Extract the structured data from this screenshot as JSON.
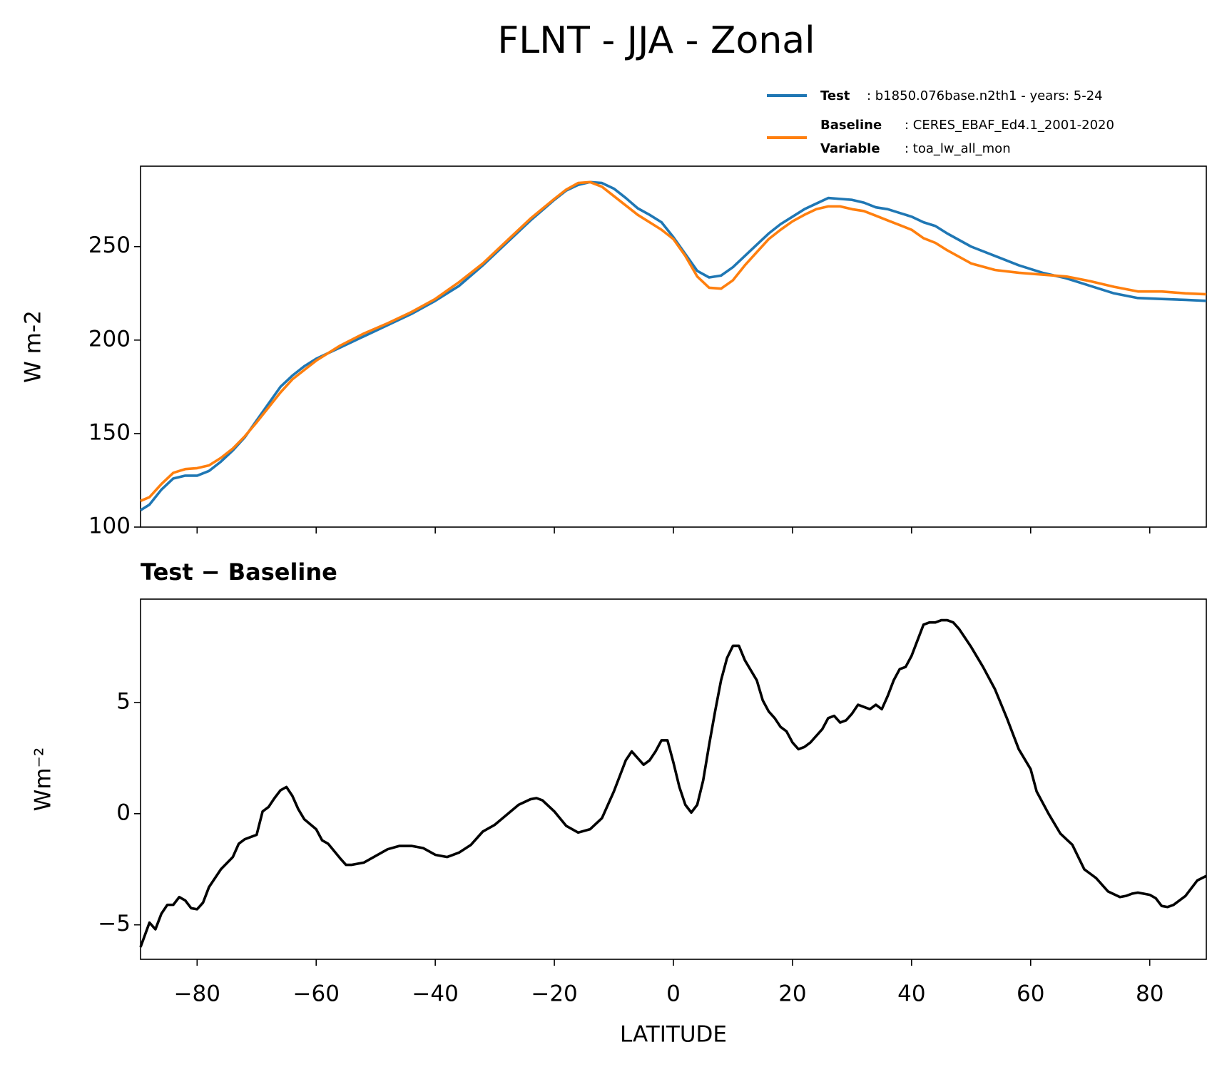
{
  "chart_data": [
    {
      "type": "line",
      "title": "FLNT - JJA - Zonal",
      "ylabel": "W m-2",
      "x": [
        -89.5,
        -88,
        -86,
        -84,
        -82,
        -80,
        -78,
        -76,
        -74,
        -72,
        -70,
        -68,
        -66,
        -64,
        -62,
        -60,
        -56,
        -52,
        -48,
        -44,
        -40,
        -36,
        -32,
        -28,
        -24,
        -20,
        -18,
        -16,
        -14,
        -12,
        -10,
        -8,
        -6,
        -4,
        -2,
        0,
        2,
        4,
        6,
        8,
        10,
        12,
        14,
        16,
        18,
        20,
        22,
        24,
        26,
        28,
        30,
        32,
        34,
        36,
        38,
        40,
        42,
        44,
        46,
        50,
        54,
        58,
        62,
        66,
        70,
        74,
        78,
        82,
        86,
        89.5
      ],
      "series": [
        {
          "name": "Test",
          "label": ": b1850.076base.n2th1 - years: 5-24",
          "color": "#1f77b4",
          "values": [
            109,
            112,
            120,
            126,
            127.5,
            127.5,
            130,
            135,
            141,
            148,
            157,
            166,
            175,
            181,
            186,
            190,
            196,
            202,
            208,
            214,
            221,
            229,
            240,
            252,
            264,
            275,
            280,
            283,
            284.5,
            284,
            281,
            276,
            270.5,
            267,
            263,
            255,
            246,
            237,
            233.5,
            234.5,
            239,
            245,
            251,
            257,
            262,
            266,
            270,
            273,
            276,
            275.5,
            275,
            273.5,
            271,
            270,
            268,
            266,
            263,
            261,
            257,
            250,
            245,
            240,
            236,
            233,
            229,
            225,
            222.5,
            222,
            221.5,
            221
          ]
        },
        {
          "name": "Baseline",
          "label": ": CERES_EBAF_Ed4.1_2001-2020",
          "extra_name": "Variable",
          "extra_label": ": toa_lw_all_mon",
          "color": "#ff7f0e",
          "values": [
            114,
            116,
            123,
            129,
            131,
            131.5,
            133,
            137,
            142,
            148.5,
            156,
            164,
            172,
            179,
            184,
            189,
            197,
            203.5,
            209,
            215,
            222,
            231,
            241,
            253,
            265,
            275.5,
            280.5,
            284,
            284.5,
            282,
            277,
            272,
            267,
            263,
            259,
            254,
            245,
            234,
            228,
            227.5,
            232,
            240,
            247,
            254,
            259,
            263.5,
            267,
            270,
            271.5,
            271.5,
            270,
            269,
            266.5,
            264,
            261.5,
            259,
            254.5,
            252,
            248,
            241,
            237.5,
            236,
            235,
            234,
            231.5,
            228.5,
            226,
            226,
            225,
            224.5
          ]
        }
      ],
      "xlim": [
        -89.5,
        89.5
      ],
      "xticks": [
        -80,
        -60,
        -40,
        -20,
        0,
        20,
        40,
        60,
        80
      ],
      "ylim": [
        100,
        293
      ],
      "yticks": [
        100,
        150,
        200,
        250
      ]
    },
    {
      "type": "line",
      "title": "Test − Baseline",
      "xlabel": "LATITUDE",
      "ylabel": "Wm⁻²",
      "color": "#000000",
      "x": [
        -89.5,
        -88,
        -87,
        -86,
        -85,
        -84,
        -83,
        -82,
        -81,
        -80,
        -79,
        -78,
        -76,
        -74,
        -73,
        -72,
        -70,
        -69,
        -68,
        -67,
        -66,
        -65,
        -64,
        -63,
        -62,
        -60,
        -59,
        -58,
        -56,
        -55,
        -54,
        -52,
        -50,
        -48,
        -46,
        -44,
        -42,
        -40,
        -38,
        -36,
        -34,
        -32,
        -30,
        -28,
        -26,
        -24,
        -23,
        -22,
        -20,
        -18,
        -16,
        -14,
        -12,
        -10,
        -8,
        -7,
        -6,
        -5,
        -4,
        -3,
        -2,
        -1,
        0,
        1,
        2,
        3,
        4,
        5,
        6,
        7,
        8,
        9,
        10,
        11,
        12,
        14,
        15,
        16,
        17,
        18,
        19,
        20,
        21,
        22,
        23,
        24,
        25,
        26,
        27,
        28,
        29,
        30,
        31,
        33,
        34,
        35,
        36,
        37,
        38,
        39,
        40,
        41,
        42,
        43,
        44,
        45,
        46,
        47,
        48,
        50,
        52,
        54,
        56,
        58,
        60,
        61,
        63,
        65,
        67,
        69,
        71,
        73,
        75,
        76,
        77,
        78,
        79,
        80,
        81,
        82,
        83,
        84,
        86,
        88,
        89.5
      ],
      "values": [
        -6,
        -4.9,
        -5.2,
        -4.5,
        -4.1,
        -4.1,
        -3.75,
        -3.9,
        -4.25,
        -4.3,
        -4,
        -3.3,
        -2.5,
        -1.95,
        -1.35,
        -1.15,
        -0.95,
        0.1,
        0.3,
        0.7,
        1.05,
        1.2,
        0.8,
        0.2,
        -0.25,
        -0.7,
        -1.2,
        -1.35,
        -2,
        -2.3,
        -2.3,
        -2.2,
        -1.9,
        -1.6,
        -1.45,
        -1.45,
        -1.55,
        -1.85,
        -1.95,
        -1.75,
        -1.4,
        -0.8,
        -0.5,
        -0.05,
        0.4,
        0.65,
        0.7,
        0.6,
        0.1,
        -0.55,
        -0.85,
        -0.7,
        -0.2,
        1,
        2.4,
        2.8,
        2.5,
        2.2,
        2.4,
        2.8,
        3.3,
        3.3,
        2.3,
        1.2,
        0.4,
        0.05,
        0.4,
        1.5,
        3.1,
        4.6,
        6,
        7,
        7.55,
        7.55,
        6.9,
        6,
        5.1,
        4.6,
        4.3,
        3.9,
        3.7,
        3.2,
        2.9,
        3,
        3.2,
        3.5,
        3.8,
        4.3,
        4.4,
        4.1,
        4.2,
        4.5,
        4.9,
        4.7,
        4.9,
        4.7,
        5.3,
        6,
        6.5,
        6.6,
        7.1,
        7.8,
        8.5,
        8.6,
        8.6,
        8.7,
        8.7,
        8.6,
        8.3,
        7.5,
        6.6,
        5.6,
        4.3,
        2.9,
        2,
        1,
        0,
        -0.9,
        -1.4,
        -2.5,
        -2.9,
        -3.5,
        -3.75,
        -3.7,
        -3.6,
        -3.55,
        -3.6,
        -3.65,
        -3.8,
        -4.15,
        -4.2,
        -4.1,
        -3.7,
        -3,
        -2.8
      ],
      "xlim": [
        -89.5,
        89.5
      ],
      "xticks": [
        {
          "value": -80,
          "label": "−80"
        },
        {
          "value": -60,
          "label": "−60"
        },
        {
          "value": -40,
          "label": "−40"
        },
        {
          "value": -20,
          "label": "−20"
        },
        0,
        20,
        40,
        60,
        80
      ],
      "ylim": [
        -6.55,
        9.65
      ],
      "yticks": [
        {
          "value": -5,
          "label": "−5"
        },
        0,
        5
      ]
    }
  ]
}
